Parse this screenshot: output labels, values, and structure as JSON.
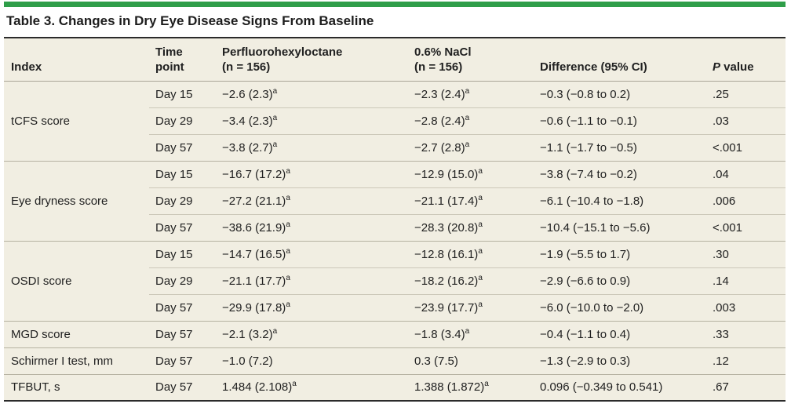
{
  "title": "Table 3. Changes in Dry Eye Disease Signs From Baseline",
  "colors": {
    "accent_green": "#2f9e49",
    "table_background": "#f1eee2",
    "dark_rule": "#2b2b2b"
  },
  "footnote_marker": "a",
  "header": {
    "index": "Index",
    "time_point_line1": "Time",
    "time_point_line2": "point",
    "pfho_line1": "Perfluorohexyloctane",
    "pfho_line2": "(n = 156)",
    "nacl_line1": "0.6% NaCl",
    "nacl_line2": "(n = 156)",
    "difference": "Difference (95% CI)",
    "p_italic": "P",
    "p_rest": " value"
  },
  "rows": [
    {
      "index": "tCFS score",
      "rowspan": 3,
      "group_start": true,
      "time": "Day 15",
      "pfho": "−2.6 (2.3)",
      "pfho_sup": true,
      "nacl": "−2.3 (2.4)",
      "nacl_sup": true,
      "diff": "−0.3 (−0.8 to 0.2)",
      "p": ".25"
    },
    {
      "group_start": false,
      "time": "Day 29",
      "pfho": "−3.4 (2.3)",
      "pfho_sup": true,
      "nacl": "−2.8 (2.4)",
      "nacl_sup": true,
      "diff": "−0.6 (−1.1 to −0.1)",
      "p": ".03"
    },
    {
      "group_start": false,
      "time": "Day 57",
      "pfho": "−3.8 (2.7)",
      "pfho_sup": true,
      "nacl": "−2.7 (2.8)",
      "nacl_sup": true,
      "diff": "−1.1 (−1.7 to −0.5)",
      "p": "<.001"
    },
    {
      "index": "Eye dryness score",
      "rowspan": 3,
      "group_start": true,
      "time": "Day 15",
      "pfho": "−16.7 (17.2)",
      "pfho_sup": true,
      "nacl": "−12.9 (15.0)",
      "nacl_sup": true,
      "diff": "−3.8 (−7.4 to −0.2)",
      "p": ".04"
    },
    {
      "group_start": false,
      "time": "Day 29",
      "pfho": "−27.2 (21.1)",
      "pfho_sup": true,
      "nacl": "−21.1 (17.4)",
      "nacl_sup": true,
      "diff": "−6.1 (−10.4 to −1.8)",
      "p": ".006"
    },
    {
      "group_start": false,
      "time": "Day 57",
      "pfho": "−38.6 (21.9)",
      "pfho_sup": true,
      "nacl": "−28.3 (20.8)",
      "nacl_sup": true,
      "diff": "−10.4 (−15.1 to −5.6)",
      "p": "<.001"
    },
    {
      "index": "OSDI score",
      "rowspan": 3,
      "group_start": true,
      "time": "Day 15",
      "pfho": "−14.7 (16.5)",
      "pfho_sup": true,
      "nacl": "−12.8 (16.1)",
      "nacl_sup": true,
      "diff": "−1.9 (−5.5 to 1.7)",
      "p": ".30"
    },
    {
      "group_start": false,
      "time": "Day 29",
      "pfho": "−21.1 (17.7)",
      "pfho_sup": true,
      "nacl": "−18.2 (16.2)",
      "nacl_sup": true,
      "diff": "−2.9 (−6.6 to 0.9)",
      "p": ".14"
    },
    {
      "group_start": false,
      "time": "Day 57",
      "pfho": "−29.9 (17.8)",
      "pfho_sup": true,
      "nacl": "−23.9 (17.7)",
      "nacl_sup": true,
      "diff": "−6.0 (−10.0 to −2.0)",
      "p": ".003"
    },
    {
      "index": "MGD score",
      "rowspan": 1,
      "group_start": true,
      "time": "Day 57",
      "pfho": "−2.1 (3.2)",
      "pfho_sup": true,
      "nacl": "−1.8 (3.4)",
      "nacl_sup": true,
      "diff": "−0.4 (−1.1 to 0.4)",
      "p": ".33"
    },
    {
      "index": "Schirmer I test, mm",
      "rowspan": 1,
      "group_start": true,
      "time": "Day 57",
      "pfho": "−1.0 (7.2)",
      "pfho_sup": false,
      "nacl": "0.3 (7.5)",
      "nacl_sup": false,
      "diff": "−1.3 (−2.9 to 0.3)",
      "p": ".12"
    },
    {
      "index": "TFBUT, s",
      "rowspan": 1,
      "group_start": true,
      "time": "Day 57",
      "pfho": "1.484 (2.108)",
      "pfho_sup": true,
      "nacl": "1.388 (1.872)",
      "nacl_sup": true,
      "diff": "0.096 (−0.349 to 0.541)",
      "p": ".67"
    }
  ]
}
